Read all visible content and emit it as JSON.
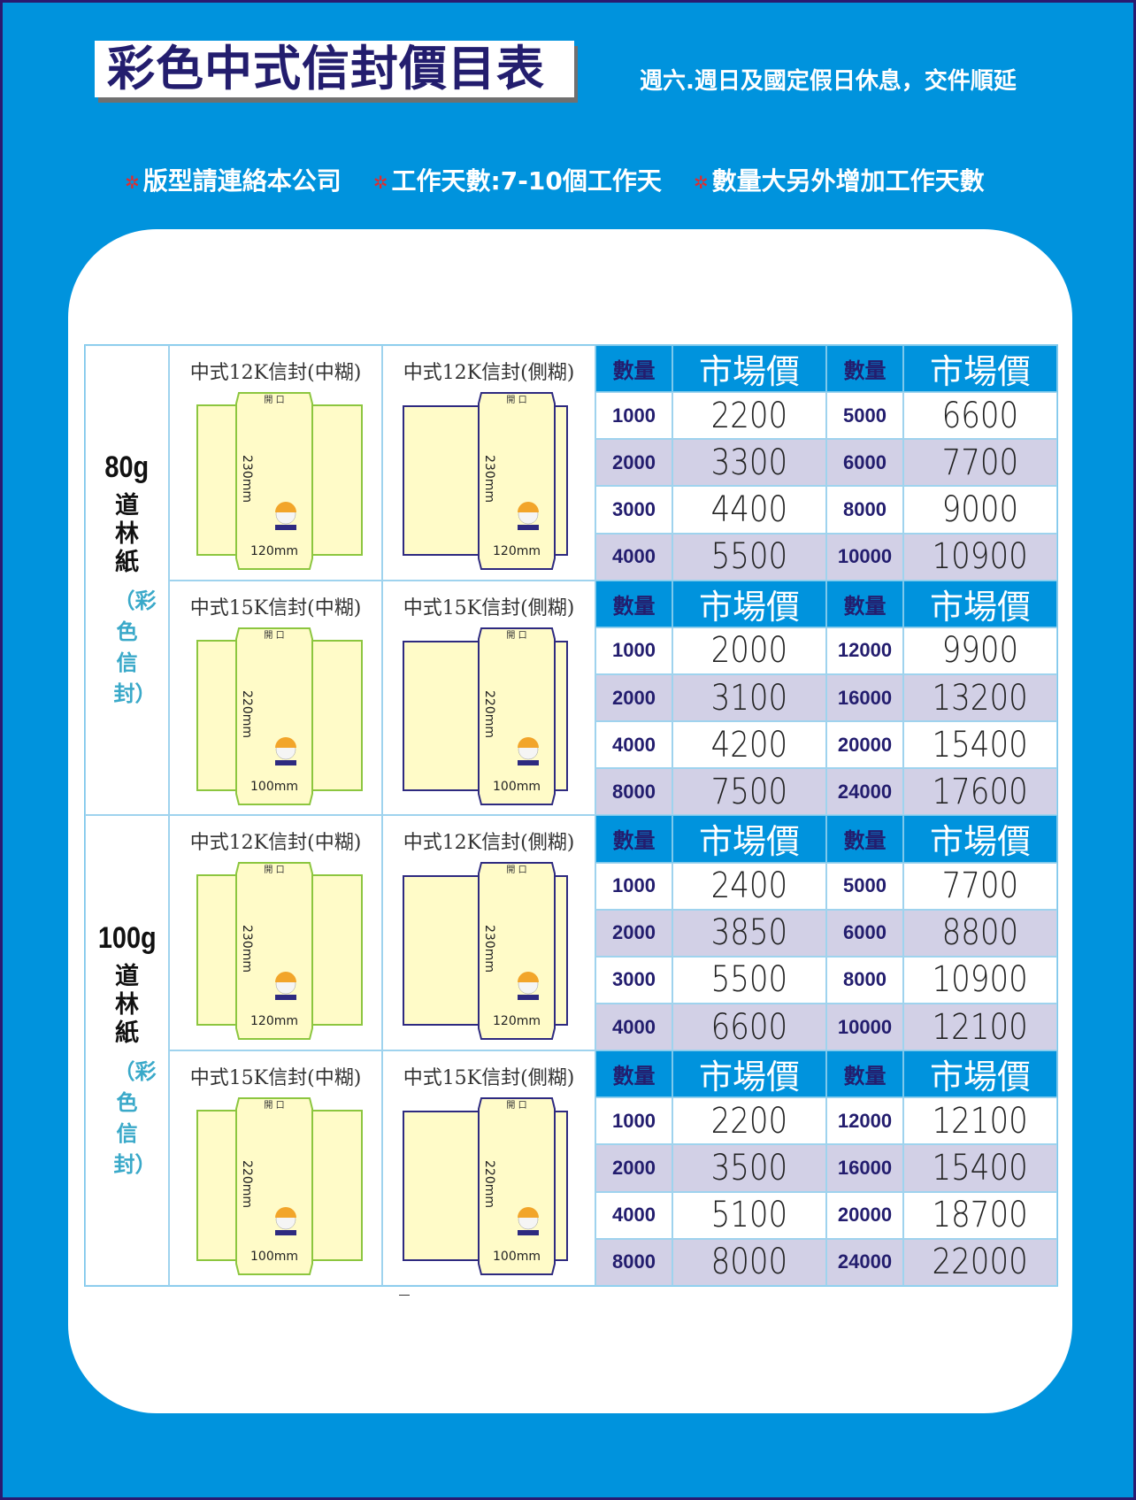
{
  "title": "彩色中式信封價目表",
  "notice": "週六.週日及國定假日休息，交件順延",
  "notes": [
    "版型請連絡本公司",
    "工作天數:7-10個工作天",
    "數量大另外增加工作天數"
  ],
  "colors": {
    "background": "#0093dd",
    "header": "#0093dd",
    "alt_row": "#d2d0e6",
    "quantity_text": "#231d6e",
    "center_glue_stroke": "#8cc63f",
    "side_glue_stroke": "#2e2a80",
    "envelope_fill": "#fffbc8",
    "note_star": "#e52a2a"
  },
  "headers": {
    "qty": "數量",
    "price": "市場價"
  },
  "envelope_opening_label": "開 口",
  "sections": [
    {
      "weight": "80g",
      "paper": "道林紙",
      "sub": "（彩色信封）",
      "blocks": [
        {
          "envelopes": [
            {
              "title": "中式12K信封(中糊)",
              "type": "center",
              "height": "230mm",
              "width": "120mm"
            },
            {
              "title": "中式12K信封(側糊)",
              "type": "side",
              "height": "230mm",
              "width": "120mm"
            }
          ],
          "rows": [
            [
              "1000",
              "2200",
              "5000",
              "6600"
            ],
            [
              "2000",
              "3300",
              "6000",
              "7700"
            ],
            [
              "3000",
              "4400",
              "8000",
              "9000"
            ],
            [
              "4000",
              "5500",
              "10000",
              "10900"
            ]
          ]
        },
        {
          "envelopes": [
            {
              "title": "中式15K信封(中糊)",
              "type": "center",
              "height": "220mm",
              "width": "100mm"
            },
            {
              "title": "中式15K信封(側糊)",
              "type": "side",
              "height": "220mm",
              "width": "100mm"
            }
          ],
          "rows": [
            [
              "1000",
              "2000",
              "12000",
              "9900"
            ],
            [
              "2000",
              "3100",
              "16000",
              "13200"
            ],
            [
              "4000",
              "4200",
              "20000",
              "15400"
            ],
            [
              "8000",
              "7500",
              "24000",
              "17600"
            ]
          ]
        }
      ]
    },
    {
      "weight": "100g",
      "paper": "道林紙",
      "sub": "（彩色信封）",
      "blocks": [
        {
          "envelopes": [
            {
              "title": "中式12K信封(中糊)",
              "type": "center",
              "height": "230mm",
              "width": "120mm"
            },
            {
              "title": "中式12K信封(側糊)",
              "type": "side",
              "height": "230mm",
              "width": "120mm"
            }
          ],
          "rows": [
            [
              "1000",
              "2400",
              "5000",
              "7700"
            ],
            [
              "2000",
              "3850",
              "6000",
              "8800"
            ],
            [
              "3000",
              "5500",
              "8000",
              "10900"
            ],
            [
              "4000",
              "6600",
              "10000",
              "12100"
            ]
          ]
        },
        {
          "envelopes": [
            {
              "title": "中式15K信封(中糊)",
              "type": "center",
              "height": "220mm",
              "width": "100mm"
            },
            {
              "title": "中式15K信封(側糊)",
              "type": "side",
              "height": "220mm",
              "width": "100mm"
            }
          ],
          "rows": [
            [
              "1000",
              "2200",
              "12000",
              "12100"
            ],
            [
              "2000",
              "3500",
              "16000",
              "15400"
            ],
            [
              "4000",
              "5100",
              "20000",
              "18700"
            ],
            [
              "8000",
              "8000",
              "24000",
              "22000"
            ]
          ]
        }
      ]
    }
  ]
}
